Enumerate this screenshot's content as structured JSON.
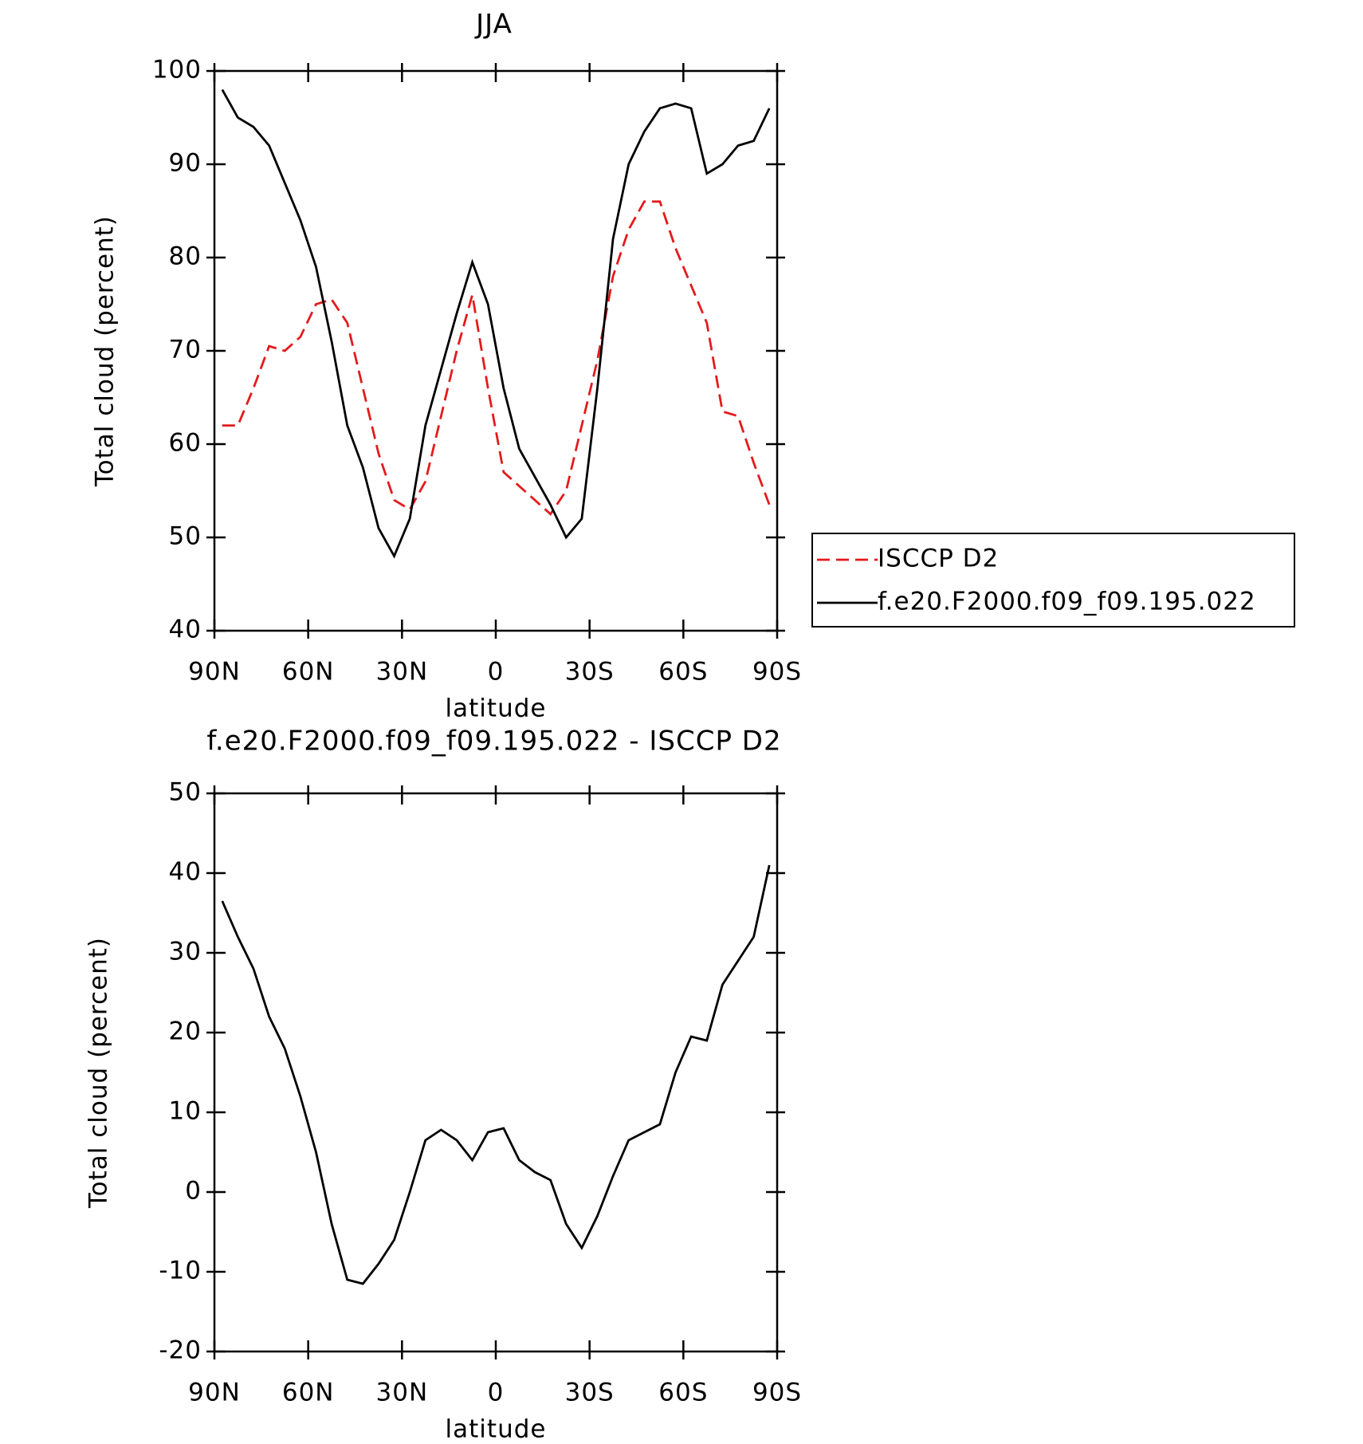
{
  "chart_data": [
    {
      "type": "line",
      "title": "JJA",
      "xlabel": "latitude",
      "ylabel": "Total cloud (percent)",
      "x": [
        87.5,
        82.5,
        77.5,
        72.5,
        67.5,
        62.5,
        57.5,
        52.5,
        47.5,
        42.5,
        37.5,
        32.5,
        27.5,
        22.5,
        17.5,
        12.5,
        7.5,
        2.5,
        -2.5,
        -7.5,
        -12.5,
        -17.5,
        -22.5,
        -27.5,
        -32.5,
        -37.5,
        -42.5,
        -47.5,
        -52.5,
        -57.5,
        -62.5,
        -67.5,
        -72.5,
        -77.5,
        -82.5,
        -87.5
      ],
      "xlim": [
        90,
        -90
      ],
      "xticks": [
        {
          "value": 90,
          "label": "90N"
        },
        {
          "value": 60,
          "label": "60N"
        },
        {
          "value": 30,
          "label": "30N"
        },
        0,
        {
          "value": -30,
          "label": "30S"
        },
        {
          "value": -60,
          "label": "60S"
        },
        {
          "value": -90,
          "label": "90S"
        }
      ],
      "ylim": [
        40,
        100
      ],
      "yticks": [
        40,
        50,
        60,
        70,
        80,
        90,
        100
      ],
      "series": [
        {
          "name": "ISCCP D2",
          "color": "#e41a1c",
          "style": "dashed",
          "values": [
            62,
            62,
            66,
            70.5,
            70,
            71.5,
            75,
            75.5,
            73,
            66,
            59,
            54,
            53,
            56,
            63,
            70,
            76,
            66,
            57,
            55.5,
            54,
            52.5,
            55,
            62,
            69,
            78,
            83,
            86,
            86,
            81,
            77,
            73,
            63.5,
            63,
            58,
            53.5
          ]
        },
        {
          "name": "f.e20.F2000.f09_f09.195.022",
          "color": "#000000",
          "style": "solid",
          "values": [
            98,
            95,
            94,
            92,
            88,
            84,
            79,
            71,
            62,
            57.5,
            51,
            48,
            52,
            62,
            68,
            74,
            79.5,
            75,
            66,
            59.5,
            56.5,
            53.5,
            50,
            52,
            66,
            82,
            90,
            93.5,
            96,
            96.5,
            96,
            89,
            90,
            92,
            92.5,
            96
          ]
        }
      ]
    },
    {
      "type": "line",
      "title": "f.e20.F2000.f09_f09.195.022 - ISCCP D2",
      "xlabel": "latitude",
      "ylabel": "Total cloud (percent)",
      "x": [
        87.5,
        82.5,
        77.5,
        72.5,
        67.5,
        62.5,
        57.5,
        52.5,
        47.5,
        42.5,
        37.5,
        32.5,
        27.5,
        22.5,
        17.5,
        12.5,
        7.5,
        2.5,
        -2.5,
        -7.5,
        -12.5,
        -17.5,
        -22.5,
        -27.5,
        -32.5,
        -37.5,
        -42.5,
        -47.5,
        -52.5,
        -57.5,
        -62.5,
        -67.5,
        -72.5,
        -77.5,
        -82.5,
        -87.5
      ],
      "xlim": [
        90,
        -90
      ],
      "xticks": [
        {
          "value": 90,
          "label": "90N"
        },
        {
          "value": 60,
          "label": "60N"
        },
        {
          "value": 30,
          "label": "30N"
        },
        0,
        {
          "value": -30,
          "label": "30S"
        },
        {
          "value": -60,
          "label": "60S"
        },
        {
          "value": -90,
          "label": "90S"
        }
      ],
      "ylim": [
        -20,
        50
      ],
      "yticks": [
        -20,
        -10,
        0,
        10,
        20,
        30,
        40,
        50
      ],
      "series": [
        {
          "color": "#000000",
          "style": "solid",
          "values": [
            36.5,
            32,
            28,
            22,
            18,
            12,
            5,
            -4,
            -11,
            -11.5,
            -9,
            -6,
            0,
            6.5,
            7.8,
            6.5,
            4,
            7.5,
            8,
            4,
            2.5,
            1.5,
            -4,
            -7,
            -3,
            2,
            6.5,
            7.5,
            8.5,
            15,
            19.5,
            19,
            26,
            29,
            32,
            41
          ]
        }
      ]
    }
  ]
}
